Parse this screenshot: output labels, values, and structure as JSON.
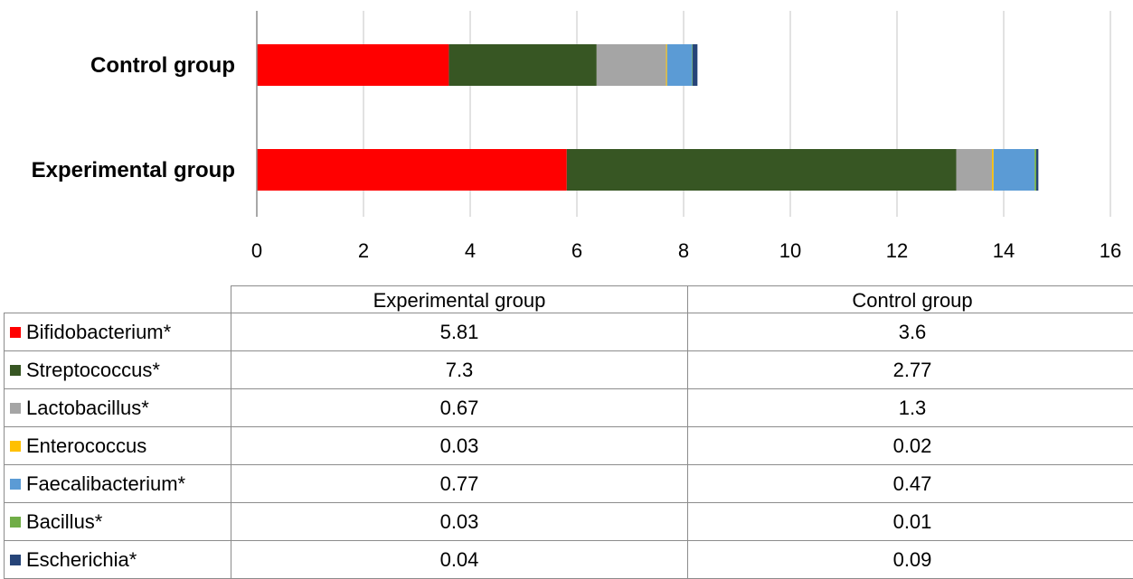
{
  "chart_data": {
    "type": "bar",
    "orientation": "horizontal",
    "stacked": true,
    "categories": [
      "Control group",
      "Experimental group"
    ],
    "xlim": [
      0,
      16
    ],
    "xticks": [
      0,
      2,
      4,
      6,
      8,
      10,
      12,
      14,
      16
    ],
    "grid": "vertical",
    "legend": "data table below chart",
    "series": [
      {
        "name": "Bifidobacterium*",
        "color": "#ff0000",
        "values": [
          3.6,
          5.81
        ]
      },
      {
        "name": "Streptococcus*",
        "color": "#375623",
        "values": [
          2.77,
          7.3
        ]
      },
      {
        "name": "Lactobacillus*",
        "color": "#a5a5a5",
        "values": [
          1.3,
          0.67
        ]
      },
      {
        "name": "Enterococcus",
        "color": "#ffc000",
        "values": [
          0.02,
          0.03
        ]
      },
      {
        "name": "Faecalibacterium*",
        "color": "#5b9bd5",
        "values": [
          0.47,
          0.77
        ]
      },
      {
        "name": "Bacillus*",
        "color": "#70ad47",
        "values": [
          0.01,
          0.03
        ]
      },
      {
        "name": "Escherichia*",
        "color": "#264478",
        "values": [
          0.09,
          0.04
        ]
      }
    ]
  },
  "table": {
    "headers": [
      "Experimental group",
      "Control group"
    ],
    "rows": [
      {
        "name": "Bifidobacterium*",
        "experimental": "5.81",
        "control": "3.6"
      },
      {
        "name": "Streptococcus*",
        "experimental": "7.3",
        "control": "2.77"
      },
      {
        "name": "Lactobacillus*",
        "experimental": "0.67",
        "control": "1.3"
      },
      {
        "name": "Enterococcus",
        "experimental": "0.03",
        "control": "0.02"
      },
      {
        "name": "Faecalibacterium*",
        "experimental": "0.77",
        "control": "0.47"
      },
      {
        "name": "Bacillus*",
        "experimental": "0.03",
        "control": "0.01"
      },
      {
        "name": "Escherichia*",
        "experimental": "0.04",
        "control": "0.09"
      }
    ]
  }
}
